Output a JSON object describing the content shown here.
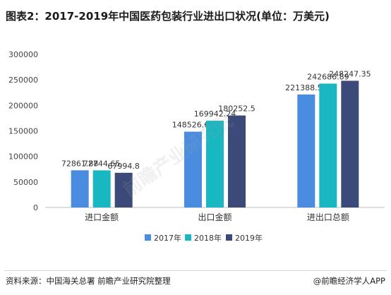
{
  "title": "图表2：2017-2019年中国医药包装行业进出口状况(单位：万美元)",
  "footer": {
    "source": "资料来源：中国海关总署 前瞻产业研究院整理",
    "brand": "@前瞻经济学人APP"
  },
  "watermark": "前瞻产业研究院",
  "chart_data": {
    "type": "bar",
    "title": "图表2：2017-2019年中国医药包装行业进出口状况(单位：万美元)",
    "categories": [
      "进口金额",
      "出口金额",
      "进出口总额"
    ],
    "series": [
      {
        "name": "2017年",
        "color": "#4a8de0",
        "values": [
          72861.88,
          148526.66,
          221388.55
        ],
        "labels": [
          "72861.88",
          "148526.66",
          "221388.55"
        ]
      },
      {
        "name": "2018年",
        "color": "#18b7c2",
        "values": [
          72744.65,
          169942.24,
          242686.89
        ],
        "labels": [
          "72744.65",
          "169942.24",
          "242686.89"
        ]
      },
      {
        "name": "2019年",
        "color": "#3b4a78",
        "values": [
          67994.8,
          180252.5,
          248247.35
        ],
        "labels": [
          "67994.8",
          "180252.5",
          "248247.35"
        ]
      }
    ],
    "yticks": [
      "0",
      "50000",
      "100000",
      "150000",
      "200000",
      "250000",
      "300000"
    ],
    "ylim": [
      0,
      300000
    ],
    "grid": false,
    "legend": "bottom"
  }
}
